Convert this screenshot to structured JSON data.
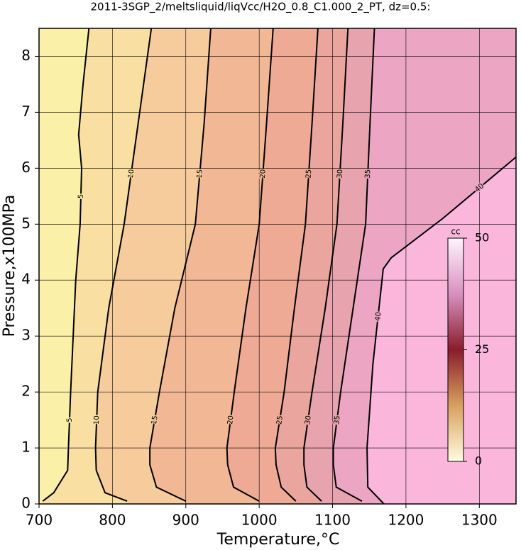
{
  "chart_data": {
    "type": "contour",
    "title": "2011-3SGP_2/meltsliquid/liqVcc/H2O_0.8_C1.000_2_PT, dz=0.5:",
    "x_label": "Temperature,°C",
    "y_label": "Pressure,x100MPa",
    "xlim": [
      700,
      1350
    ],
    "ylim": [
      0,
      8.5
    ],
    "xticks": [
      700,
      800,
      900,
      1000,
      1100,
      1200,
      1300
    ],
    "yticks": [
      0,
      1,
      2,
      3,
      4,
      5,
      6,
      7,
      8
    ],
    "grid": true,
    "region_colors": [
      "#fbf0a8",
      "#f9e0a2",
      "#f6cc9c",
      "#f2b896",
      "#eeaa94",
      "#eaa69e",
      "#e8a4ae",
      "#eca6c4",
      "#fbb6dc"
    ],
    "contours": [
      {
        "level": 5,
        "x": [
          705,
          720,
          739,
          740,
          743,
          750,
          756,
          758,
          754,
          760,
          768
        ],
        "y": [
          0.05,
          0.2,
          0.6,
          1,
          2,
          4,
          5,
          6,
          6.6,
          7.5,
          8.5
        ]
      },
      {
        "level": 10,
        "x": [
          820,
          790,
          778,
          777,
          780,
          795,
          816,
          835,
          853
        ],
        "y": [
          0.05,
          0.2,
          0.6,
          1,
          2,
          3.5,
          5,
          6.8,
          8.5
        ]
      },
      {
        "level": 15,
        "x": [
          900,
          860,
          851,
          851,
          864,
          885,
          913,
          925,
          934
        ],
        "y": [
          0.05,
          0.3,
          0.7,
          1,
          2,
          3.5,
          5,
          6.8,
          8.5
        ]
      },
      {
        "level": 20,
        "x": [
          1000,
          965,
          957,
          956,
          966,
          982,
          1000,
          1010,
          1019
        ],
        "y": [
          0.05,
          0.3,
          0.7,
          1,
          2,
          3.5,
          5,
          6.8,
          8.5
        ]
      },
      {
        "level": 25,
        "x": [
          1050,
          1030,
          1023,
          1022,
          1034,
          1048,
          1063,
          1072,
          1080
        ],
        "y": [
          0.05,
          0.3,
          0.7,
          1,
          2,
          3.5,
          5,
          6.8,
          8.5
        ]
      },
      {
        "level": 30,
        "x": [
          1085,
          1065,
          1061,
          1061,
          1072,
          1090,
          1106,
          1114,
          1121
        ],
        "y": [
          0.05,
          0.3,
          0.7,
          1,
          2,
          3.5,
          5,
          6.8,
          8.5
        ]
      },
      {
        "level": 35,
        "x": [
          1140,
          1105,
          1101,
          1101,
          1111,
          1128,
          1145,
          1151,
          1157
        ],
        "y": [
          0.05,
          0.3,
          0.7,
          1,
          2,
          3.5,
          5,
          6.8,
          8.5
        ]
      },
      {
        "level": 40,
        "x": [
          1170,
          1148,
          1147,
          1155,
          1169,
          1180,
          1250,
          1350
        ],
        "y": [
          0,
          0.3,
          1,
          2.5,
          4.2,
          4.4,
          5.1,
          6.2
        ]
      }
    ],
    "colorbar": {
      "label": "cc",
      "lim": [
        0,
        50
      ],
      "ticks": [
        0,
        25,
        50
      ],
      "colormap": [
        "#fffde0",
        "#d8a060",
        "#8a1c2c",
        "#d890c0",
        "#fff4ff"
      ]
    }
  }
}
